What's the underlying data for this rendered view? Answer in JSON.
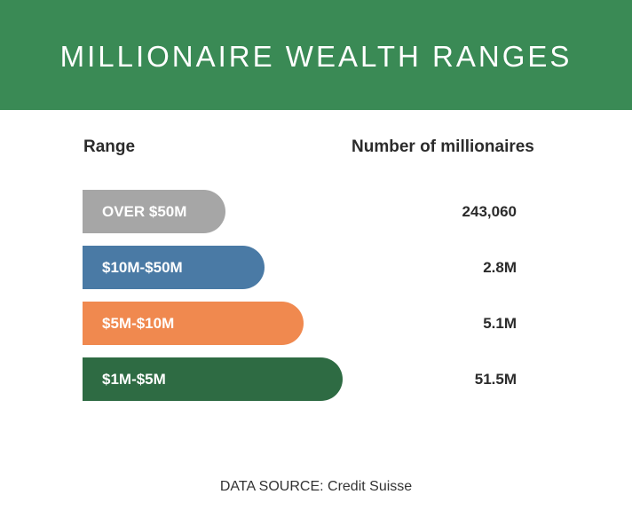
{
  "chart_data": {
    "type": "bar",
    "title": "MILLIONAIRE WEALTH RANGES",
    "columns": [
      "Range",
      "Number of millionaires"
    ],
    "rows": [
      {
        "category": "OVER $50M",
        "value_label": "243,060",
        "color": "#a6a6a6"
      },
      {
        "category": "$10M-$50M",
        "value_label": "2.8M",
        "color": "#4a7aa5"
      },
      {
        "category": "$5M-$10M",
        "value_label": "5.1M",
        "color": "#f0894f"
      },
      {
        "category": "$1M-$5M",
        "value_label": "51.5M",
        "color": "#2e6b43"
      }
    ],
    "source": "DATA SOURCE: Credit Suisse"
  },
  "colors": {
    "header": "#3a8a55"
  }
}
